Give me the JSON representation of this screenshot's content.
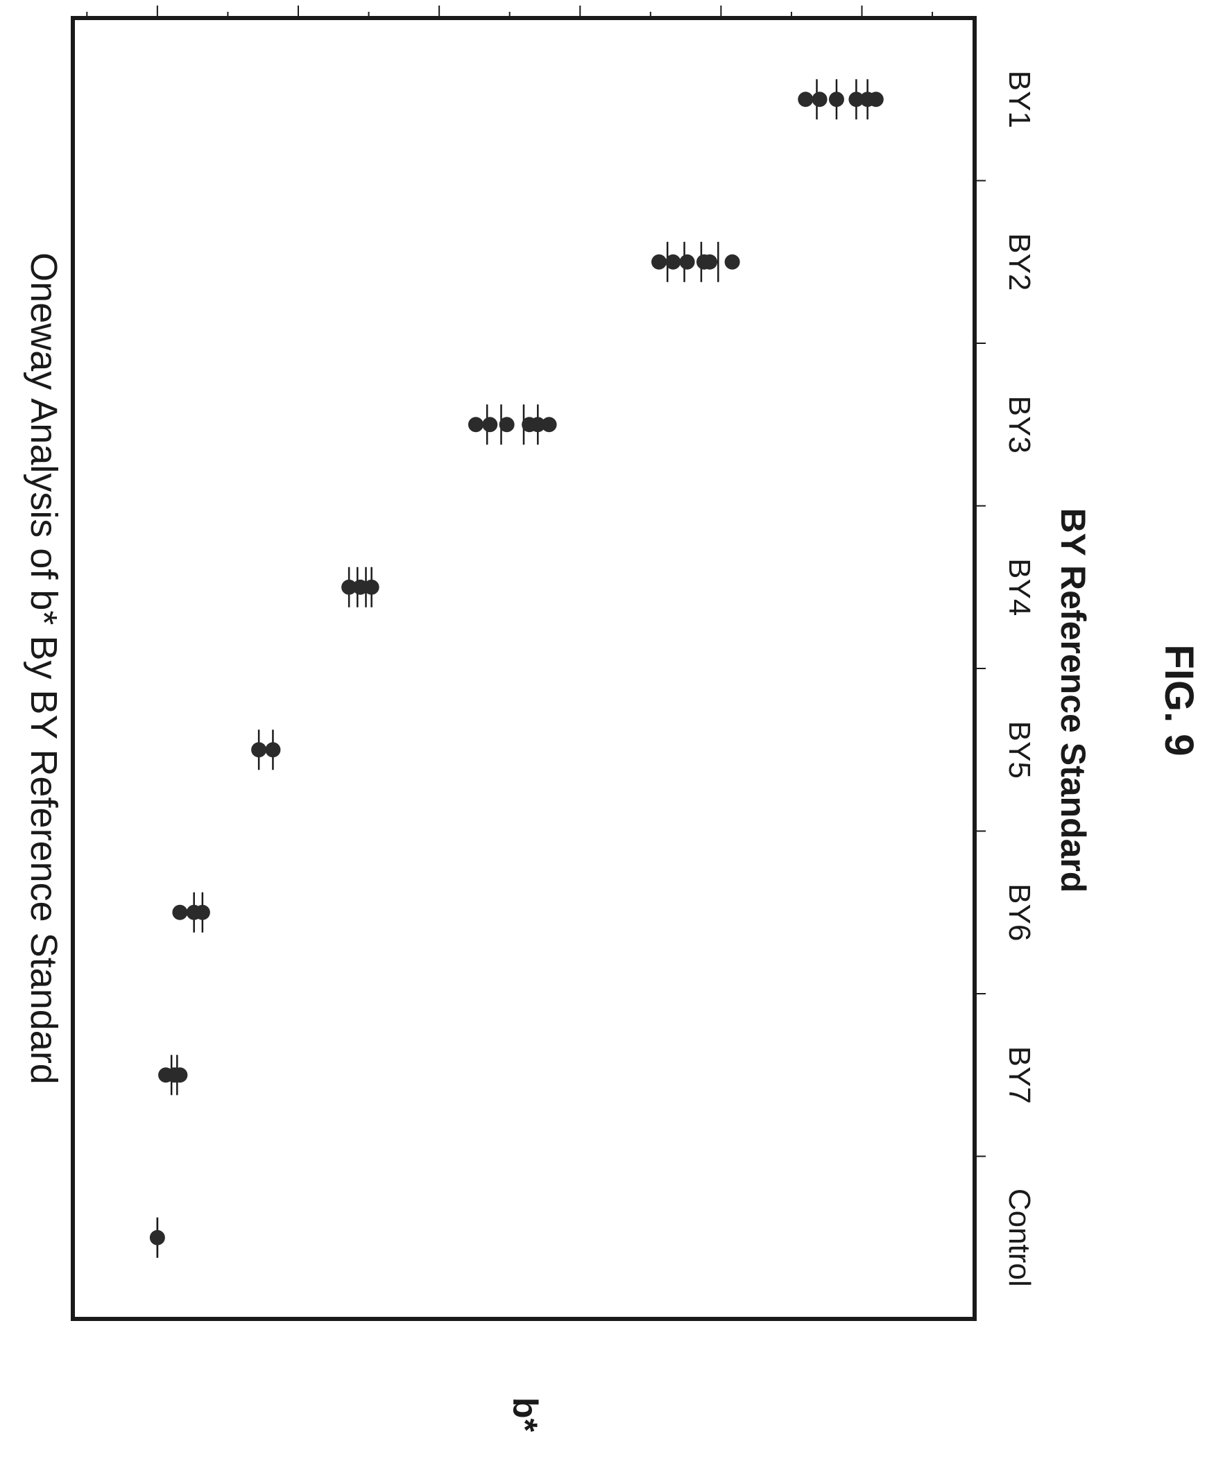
{
  "figure_label": "FIG. 9",
  "chart_data": {
    "type": "scatter",
    "title": "Oneway Analysis of b* By BY Reference Standard",
    "xlabel": "BY Reference Standard",
    "ylabel": "b*",
    "categories": [
      "BY1",
      "BY2",
      "BY3",
      "BY4",
      "BY5",
      "BY6",
      "BY7",
      "Control"
    ],
    "yticks": [
      0,
      5,
      10,
      15,
      20,
      25
    ],
    "ylim": [
      -3,
      29
    ],
    "grid": false,
    "orientation": "rotated-90-clockwise",
    "points": [
      {
        "category": "BY1",
        "values": [
          25.5,
          25.2,
          24.8,
          24.1,
          23.5,
          23.0
        ]
      },
      {
        "category": "BY2",
        "values": [
          20.4,
          19.6,
          19.4,
          18.8,
          18.3,
          17.8
        ]
      },
      {
        "category": "BY3",
        "values": [
          13.9,
          13.5,
          13.2,
          12.4,
          11.8,
          11.3
        ]
      },
      {
        "category": "BY4",
        "values": [
          7.6,
          7.2,
          6.8
        ]
      },
      {
        "category": "BY5",
        "values": [
          4.1,
          3.6
        ]
      },
      {
        "category": "BY6",
        "values": [
          1.6,
          1.3,
          0.8
        ]
      },
      {
        "category": "BY7",
        "values": [
          0.8,
          0.6,
          0.3
        ]
      },
      {
        "category": "Control",
        "values": [
          0.0
        ]
      }
    ],
    "intervals": [
      {
        "category": "BY1",
        "ranges": [
          [
            23.4,
            25.2
          ],
          [
            24.1,
            24.8
          ]
        ]
      },
      {
        "category": "BY2",
        "ranges": [
          [
            18.1,
            19.9
          ],
          [
            18.7,
            19.3
          ]
        ]
      },
      {
        "category": "BY3",
        "ranges": [
          [
            11.7,
            13.5
          ],
          [
            12.2,
            13.0
          ]
        ]
      },
      {
        "category": "BY4",
        "ranges": [
          [
            6.8,
            7.6
          ],
          [
            7.1,
            7.4
          ]
        ]
      },
      {
        "category": "BY5",
        "ranges": [
          [
            3.6,
            4.1
          ]
        ]
      },
      {
        "category": "BY6",
        "ranges": [
          [
            1.3,
            1.6
          ]
        ]
      },
      {
        "category": "BY7",
        "ranges": [
          [
            0.5,
            0.7
          ]
        ]
      },
      {
        "category": "Control",
        "ranges": [
          [
            0.0,
            0.0
          ]
        ]
      }
    ],
    "marker_color": "#2b2b2b",
    "line_color": "#1a1a1a"
  }
}
